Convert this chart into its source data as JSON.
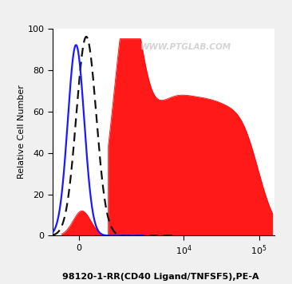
{
  "title": "98120-1-RR(CD40 Ligand/TNFSF5),PE-A",
  "ylabel": "Relative Cell Number",
  "watermark": "WWW.PTGLAB.COM",
  "ylim": [
    0,
    100
  ],
  "background_color": "#f0f0f0",
  "plot_bg_color": "#ffffff",
  "isotype_color": "#1a1aff",
  "dashed_color": "#111111",
  "fill_color": "#ff0000",
  "fill_alpha": 0.9,
  "linthresh": 1000,
  "linscale": 0.35
}
